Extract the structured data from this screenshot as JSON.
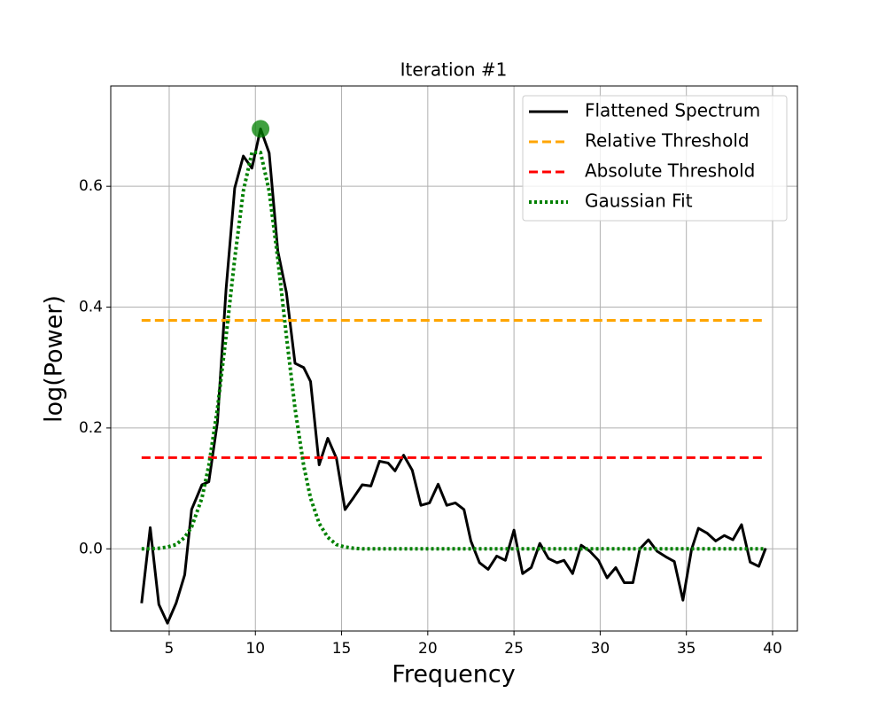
{
  "chart_data": {
    "type": "line",
    "title": "Iteration #1",
    "x_label": "Frequency",
    "y_label": "log(Power)",
    "xlim": [
      1.61,
      41.44
    ],
    "ylim": [
      -0.136,
      0.766
    ],
    "xticks": [
      5,
      10,
      15,
      20,
      25,
      30,
      35,
      40
    ],
    "yticks": [
      {
        "value": 0,
        "label": "0.0"
      },
      0.2,
      0.4,
      0.6
    ],
    "grid": true,
    "legend": "upper right",
    "series": [
      {
        "name": "Flattened Spectrum",
        "color": "#000000",
        "style": "solid",
        "x": [
          3.4,
          3.9,
          4.4,
          4.9,
          5.4,
          5.9,
          6.3,
          6.9,
          7.3,
          7.8,
          8.3,
          8.8,
          9.3,
          9.8,
          10.3,
          10.8,
          11.3,
          11.8,
          12.3,
          12.8,
          13.2,
          13.7,
          14.2,
          14.7,
          15.2,
          15.7,
          16.2,
          16.7,
          17.2,
          17.7,
          18.1,
          18.6,
          19.1,
          19.6,
          20.1,
          20.6,
          21.1,
          21.6,
          22.1,
          22.5,
          23.0,
          23.5,
          24.0,
          24.5,
          25.0,
          25.5,
          26.0,
          26.5,
          27.0,
          27.5,
          27.9,
          28.4,
          28.9,
          29.4,
          29.9,
          30.4,
          30.9,
          31.4,
          31.9,
          32.3,
          32.8,
          33.3,
          33.8,
          34.3,
          34.8,
          35.3,
          35.7,
          36.2,
          36.7,
          37.2,
          37.7,
          38.2,
          38.7,
          39.2,
          39.6
        ],
        "values": [
          -0.09,
          0.035,
          -0.092,
          -0.123,
          -0.09,
          -0.043,
          0.065,
          0.106,
          0.111,
          0.21,
          0.43,
          0.597,
          0.65,
          0.63,
          0.695,
          0.655,
          0.493,
          0.424,
          0.307,
          0.3,
          0.277,
          0.139,
          0.183,
          0.15,
          0.065,
          0.085,
          0.106,
          0.104,
          0.145,
          0.142,
          0.129,
          0.155,
          0.13,
          0.072,
          0.076,
          0.107,
          0.072,
          0.076,
          0.065,
          0.013,
          -0.023,
          -0.034,
          -0.012,
          -0.019,
          0.031,
          -0.041,
          -0.031,
          0.009,
          -0.016,
          -0.023,
          -0.019,
          -0.041,
          0.006,
          -0.004,
          -0.019,
          -0.048,
          -0.031,
          -0.056,
          -0.056,
          0,
          0.015,
          -0.004,
          -0.013,
          -0.021,
          -0.085,
          -0.001,
          0.034,
          0.026,
          0.013,
          0.022,
          0.015,
          0.04,
          -0.022,
          -0.029,
          0.001
        ]
      },
      {
        "name": "Relative Threshold",
        "color": "#ffa500",
        "style": "dashed",
        "x": [
          3.4,
          39.6
        ],
        "values": [
          0.378,
          0.378
        ]
      },
      {
        "name": "Absolute Threshold",
        "color": "#ff0000",
        "style": "dashed",
        "x": [
          3.4,
          39.6
        ],
        "values": [
          0.151,
          0.151
        ]
      },
      {
        "name": "Gaussian Fit",
        "color": "#008000",
        "style": "dotted",
        "x": [
          3.4,
          3.9,
          4.4,
          4.9,
          5.4,
          5.9,
          6.3,
          6.9,
          7.3,
          7.8,
          8.3,
          8.8,
          9.3,
          9.8,
          10.3,
          10.8,
          11.3,
          11.8,
          12.3,
          12.8,
          13.2,
          13.7,
          14.2,
          14.7,
          15.2,
          15.7,
          16.2,
          20,
          25,
          30,
          35,
          39.6
        ],
        "values": [
          0,
          0,
          0.001,
          0.003,
          0.007,
          0.019,
          0.036,
          0.084,
          0.138,
          0.232,
          0.352,
          0.48,
          0.592,
          0.656,
          0.656,
          0.592,
          0.48,
          0.352,
          0.232,
          0.138,
          0.084,
          0.042,
          0.019,
          0.007,
          0.003,
          0.001,
          0,
          0,
          0,
          0,
          0,
          0
        ]
      }
    ],
    "peak": {
      "x": 10.3,
      "y": 0.695,
      "color": "#008000"
    }
  }
}
